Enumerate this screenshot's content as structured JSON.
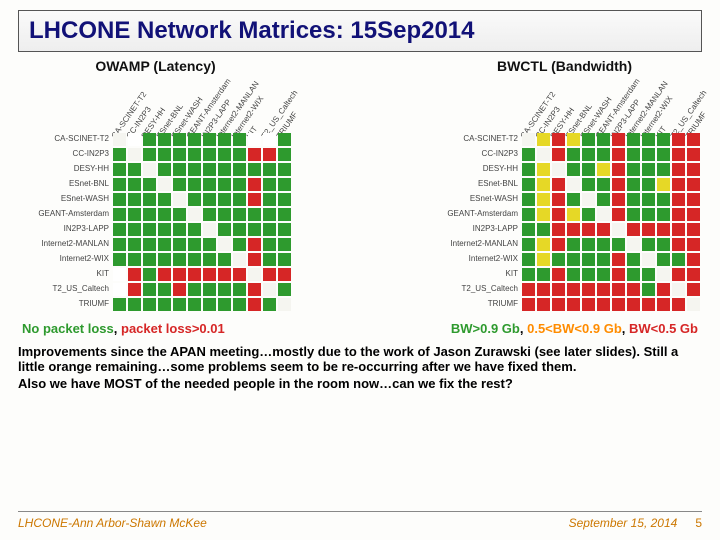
{
  "title": {
    "text": "LHCONE Network Matrices: 15Sep2014",
    "color": "#111177",
    "fontsize": 24
  },
  "labels": [
    "CA-SCINET-T2",
    "CC-IN2P3",
    "DESY-HH",
    "ESnet-BNL",
    "ESnet-WASH",
    "GEANT-Amsterdam",
    "IN2P3-LAPP",
    "Internet2-MANLAN",
    "Internet2-WIX",
    "KIT",
    "T2_US_Caltech",
    "TRIUMF"
  ],
  "colors": {
    "green": "#2e9a2e",
    "red": "#d62626",
    "yellow": "#e6d826",
    "orange": "#ff8c00",
    "white": "#ffffff",
    "diag": "#f5f5f0"
  },
  "owamp": {
    "subtitle": "OWAMP  (Latency)",
    "cells": [
      [
        "d",
        "w",
        "g",
        "g",
        "g",
        "g",
        "g",
        "g",
        "g",
        "w",
        "w",
        "g"
      ],
      [
        "g",
        "d",
        "g",
        "g",
        "g",
        "g",
        "g",
        "g",
        "g",
        "r",
        "r",
        "g"
      ],
      [
        "g",
        "g",
        "d",
        "g",
        "g",
        "g",
        "g",
        "g",
        "g",
        "g",
        "g",
        "g"
      ],
      [
        "g",
        "g",
        "g",
        "d",
        "g",
        "g",
        "g",
        "g",
        "g",
        "r",
        "g",
        "g"
      ],
      [
        "g",
        "g",
        "g",
        "g",
        "d",
        "g",
        "g",
        "g",
        "g",
        "r",
        "g",
        "g"
      ],
      [
        "g",
        "g",
        "g",
        "g",
        "g",
        "d",
        "g",
        "g",
        "g",
        "g",
        "g",
        "g"
      ],
      [
        "g",
        "g",
        "g",
        "g",
        "g",
        "g",
        "d",
        "g",
        "g",
        "g",
        "g",
        "g"
      ],
      [
        "g",
        "g",
        "g",
        "g",
        "g",
        "g",
        "g",
        "d",
        "g",
        "r",
        "g",
        "g"
      ],
      [
        "g",
        "g",
        "g",
        "g",
        "g",
        "g",
        "g",
        "g",
        "d",
        "r",
        "g",
        "g"
      ],
      [
        "w",
        "r",
        "g",
        "r",
        "r",
        "r",
        "r",
        "r",
        "r",
        "d",
        "r",
        "r"
      ],
      [
        "w",
        "r",
        "g",
        "g",
        "r",
        "g",
        "g",
        "g",
        "g",
        "r",
        "d",
        "g"
      ],
      [
        "g",
        "g",
        "g",
        "g",
        "g",
        "g",
        "g",
        "g",
        "g",
        "r",
        "g",
        "d"
      ]
    ]
  },
  "bwctl": {
    "subtitle": "BWCTL  (Bandwidth)",
    "cells": [
      [
        "d",
        "y",
        "r",
        "y",
        "g",
        "g",
        "r",
        "g",
        "g",
        "g",
        "r",
        "r"
      ],
      [
        "g",
        "d",
        "r",
        "g",
        "g",
        "g",
        "r",
        "g",
        "g",
        "g",
        "r",
        "r"
      ],
      [
        "g",
        "y",
        "d",
        "g",
        "g",
        "y",
        "r",
        "g",
        "g",
        "g",
        "r",
        "r"
      ],
      [
        "g",
        "y",
        "r",
        "d",
        "g",
        "g",
        "r",
        "g",
        "g",
        "y",
        "r",
        "r"
      ],
      [
        "g",
        "y",
        "r",
        "g",
        "d",
        "g",
        "r",
        "g",
        "g",
        "g",
        "r",
        "r"
      ],
      [
        "g",
        "y",
        "r",
        "y",
        "g",
        "d",
        "r",
        "g",
        "g",
        "g",
        "r",
        "r"
      ],
      [
        "g",
        "g",
        "r",
        "r",
        "r",
        "r",
        "d",
        "r",
        "r",
        "r",
        "r",
        "r"
      ],
      [
        "g",
        "y",
        "r",
        "g",
        "g",
        "g",
        "g",
        "d",
        "g",
        "g",
        "r",
        "r"
      ],
      [
        "g",
        "y",
        "g",
        "g",
        "g",
        "g",
        "r",
        "g",
        "d",
        "g",
        "g",
        "r"
      ],
      [
        "g",
        "g",
        "r",
        "g",
        "g",
        "g",
        "r",
        "g",
        "g",
        "d",
        "r",
        "r"
      ],
      [
        "r",
        "r",
        "r",
        "r",
        "r",
        "r",
        "r",
        "r",
        "g",
        "r",
        "d",
        "r"
      ],
      [
        "r",
        "r",
        "r",
        "r",
        "r",
        "r",
        "r",
        "r",
        "r",
        "r",
        "r",
        "d"
      ]
    ]
  },
  "chart_layout": {
    "n": 12,
    "cell": 13,
    "gap": 2,
    "row_label_w": 95,
    "col_label_h": 55,
    "label_fontsize": 8,
    "subtitle_fontsize": 14
  },
  "legend": {
    "left": {
      "parts": [
        {
          "text": "No packet loss",
          "color": "#2e9a2e"
        },
        {
          "text": ", ",
          "color": "#000000"
        },
        {
          "text": "packet loss>0.01",
          "color": "#d62626"
        }
      ],
      "fontsize": 13
    },
    "right": {
      "parts": [
        {
          "text": "BW>0.9 Gb",
          "color": "#2e9a2e"
        },
        {
          "text": ", ",
          "color": "#000000"
        },
        {
          "text": "0.5<BW<0.9 Gb",
          "color": "#ff8c00"
        },
        {
          "text": ", ",
          "color": "#000000"
        },
        {
          "text": "BW<0.5  Gb",
          "color": "#d62626"
        }
      ],
      "fontsize": 13
    }
  },
  "body": {
    "fontsize": 13,
    "lines": [
      "Improvements  since the  APAN  meeting…mostly due  to  the  work  of  Jason  Zurawski (see  later slides).   Still  a little  orange  remaining…some  problems  seem  to  be  re-occurring  after  we  have fixed  them.",
      "Also  we  have  MOST of  the needed people  in the room  now…can  we fix the rest?"
    ]
  },
  "footer": {
    "left": "LHCONE-Ann Arbor-Shawn McKee",
    "date": "September 15, 2014",
    "page": "5",
    "color": "#cc7700",
    "fontsize": 12
  }
}
